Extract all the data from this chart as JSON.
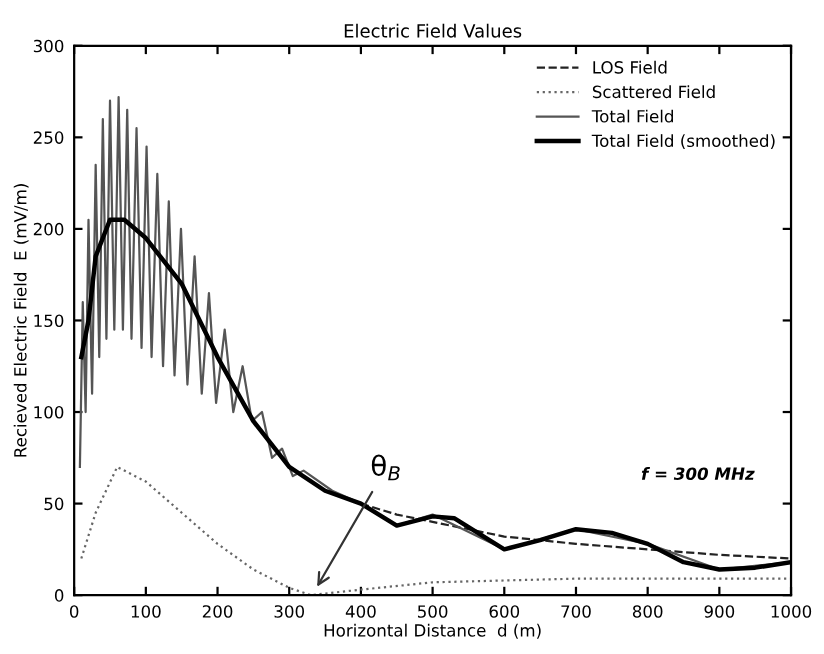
{
  "chart_data": {
    "type": "line",
    "title": "Electric Field Values",
    "xlabel": "Horizontal Distance  d (m)",
    "ylabel": "Recieved Electric Field  E (mV/m)",
    "xlim": [
      0,
      1000
    ],
    "ylim": [
      0,
      300
    ],
    "xticks": [
      0,
      100,
      200,
      300,
      400,
      500,
      600,
      700,
      800,
      900,
      1000
    ],
    "yticks": [
      0,
      50,
      100,
      150,
      200,
      250,
      300
    ],
    "grid": false,
    "legend": "top right",
    "marker": "none",
    "series": [
      {
        "name": "LOS Field",
        "color": "#222222",
        "line_style": "dashed",
        "x": [
          400,
          450,
          500,
          600,
          700,
          800,
          900,
          1000
        ],
        "values": [
          50,
          44,
          40,
          32,
          28,
          25,
          22,
          20
        ]
      },
      {
        "name": "Scattered Field",
        "color": "#666666",
        "line_style": "dotted",
        "x": [
          10,
          30,
          60,
          100,
          150,
          200,
          250,
          300,
          330,
          400,
          500,
          600,
          700,
          800,
          900,
          1000
        ],
        "values": [
          20,
          45,
          70,
          62,
          45,
          28,
          14,
          4,
          0,
          3,
          7,
          8,
          9,
          9,
          9,
          9
        ]
      },
      {
        "name": "Total Field",
        "color": "#555555",
        "line_style": "solid",
        "x": [
          8,
          12,
          16,
          20,
          25,
          30,
          35,
          40,
          45,
          50,
          56,
          62,
          68,
          74,
          80,
          87,
          94,
          101,
          108,
          116,
          124,
          132,
          140,
          149,
          158,
          168,
          178,
          188,
          198,
          210,
          222,
          235,
          248,
          262,
          276,
          290,
          305,
          320,
          360,
          400,
          450,
          500,
          600,
          700,
          800,
          900,
          1000
        ],
        "values": [
          70,
          160,
          100,
          205,
          110,
          235,
          130,
          260,
          140,
          270,
          145,
          272,
          145,
          265,
          140,
          255,
          135,
          245,
          130,
          230,
          125,
          215,
          120,
          200,
          115,
          185,
          110,
          165,
          105,
          145,
          100,
          125,
          95,
          100,
          75,
          80,
          65,
          68,
          57,
          50,
          38,
          44,
          25,
          36,
          28,
          14,
          18
        ]
      },
      {
        "name": "Total Field (smoothed)",
        "color": "#000000",
        "line_style": "solid",
        "x": [
          10,
          20,
          30,
          50,
          70,
          100,
          150,
          200,
          250,
          300,
          350,
          400,
          450,
          500,
          530,
          600,
          650,
          700,
          750,
          800,
          850,
          900,
          950,
          1000
        ],
        "values": [
          130,
          150,
          185,
          205,
          205,
          195,
          170,
          130,
          95,
          70,
          57,
          50,
          38,
          43,
          42,
          25,
          30,
          36,
          34,
          28,
          18,
          14,
          15,
          18
        ]
      }
    ],
    "annotations": [
      {
        "text": "θ$_{B}$",
        "x": 335,
        "y": 2
      },
      "f = 300 MHz"
    ]
  }
}
